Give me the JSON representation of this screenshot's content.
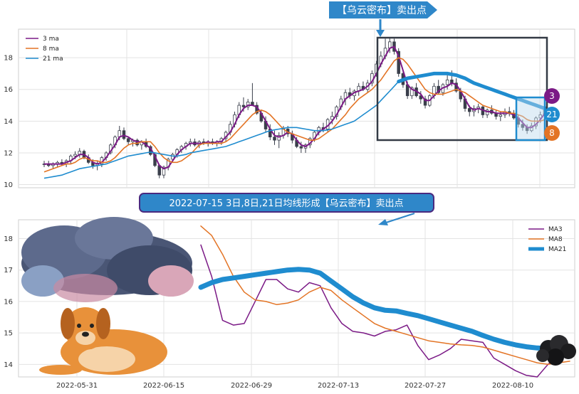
{
  "top_banner": "【乌云密布】卖出点",
  "bottom_banner": "2022-07-15 3日,8日,21日均线形成【乌云密布】卖出点",
  "colors": {
    "ma3": "#7b1a86",
    "ma8": "#e37425",
    "ma21": "#1f8ccf",
    "banner": "#2f87c9",
    "box": "#333a45"
  },
  "chart_data": [
    {
      "type": "candlestick+line",
      "legend": [
        "3 ma",
        "8 ma",
        "21 ma"
      ],
      "legend_position": "top-left",
      "yticks": [
        "10",
        "12",
        "14",
        "16",
        "18"
      ],
      "ylim": [
        9.8,
        19.8
      ],
      "grid": true,
      "end_badges": [
        "3",
        "21",
        "8"
      ],
      "ohlc": [
        [
          11.3,
          11.5,
          11.1,
          11.3
        ],
        [
          11.3,
          11.5,
          11.1,
          11.2
        ],
        [
          11.2,
          11.4,
          11.0,
          11.3
        ],
        [
          11.3,
          11.5,
          11.1,
          11.4
        ],
        [
          11.4,
          11.6,
          11.2,
          11.3
        ],
        [
          11.3,
          11.6,
          11.1,
          11.5
        ],
        [
          11.5,
          11.9,
          11.3,
          11.8
        ],
        [
          11.8,
          12.1,
          11.6,
          11.9
        ],
        [
          11.9,
          12.3,
          11.7,
          12.1
        ],
        [
          12.1,
          12.2,
          11.6,
          11.7
        ],
        [
          11.7,
          11.9,
          11.3,
          11.4
        ],
        [
          11.4,
          11.6,
          11.0,
          11.2
        ],
        [
          11.2,
          11.5,
          10.9,
          11.3
        ],
        [
          11.3,
          11.8,
          11.1,
          11.7
        ],
        [
          11.7,
          12.1,
          11.5,
          12.0
        ],
        [
          12.0,
          12.6,
          11.9,
          12.5
        ],
        [
          12.5,
          13.1,
          12.3,
          13.0
        ],
        [
          13.0,
          13.7,
          12.8,
          13.4
        ],
        [
          13.4,
          13.6,
          12.8,
          12.9
        ],
        [
          12.9,
          13.0,
          12.5,
          12.7
        ],
        [
          12.7,
          12.9,
          12.4,
          12.8
        ],
        [
          12.8,
          12.9,
          12.4,
          12.5
        ],
        [
          12.5,
          12.8,
          12.2,
          12.7
        ],
        [
          12.7,
          12.9,
          12.3,
          12.4
        ],
        [
          12.4,
          12.5,
          11.8,
          11.9
        ],
        [
          11.9,
          12.0,
          11.1,
          11.2
        ],
        [
          11.2,
          11.3,
          10.4,
          10.6
        ],
        [
          10.6,
          11.2,
          10.4,
          11.1
        ],
        [
          11.1,
          11.7,
          10.9,
          11.6
        ],
        [
          11.6,
          12.0,
          11.4,
          11.9
        ],
        [
          11.9,
          12.3,
          11.7,
          12.2
        ],
        [
          12.2,
          12.5,
          12.0,
          12.4
        ],
        [
          12.4,
          12.7,
          12.2,
          12.6
        ],
        [
          12.6,
          12.9,
          12.4,
          12.7
        ],
        [
          12.7,
          12.9,
          12.4,
          12.5
        ],
        [
          12.5,
          12.8,
          12.3,
          12.7
        ],
        [
          12.7,
          12.9,
          12.5,
          12.6
        ],
        [
          12.6,
          12.8,
          12.4,
          12.7
        ],
        [
          12.7,
          12.9,
          12.5,
          12.6
        ],
        [
          12.6,
          12.8,
          12.4,
          12.7
        ],
        [
          12.7,
          13.0,
          12.5,
          12.9
        ],
        [
          12.9,
          13.4,
          12.7,
          13.3
        ],
        [
          13.3,
          14.0,
          13.1,
          13.8
        ],
        [
          13.8,
          14.6,
          13.6,
          14.4
        ],
        [
          14.4,
          15.2,
          14.2,
          15.0
        ],
        [
          15.0,
          15.5,
          14.6,
          14.9
        ],
        [
          14.9,
          15.4,
          14.7,
          15.2
        ],
        [
          15.2,
          16.4,
          15.0,
          15.0
        ],
        [
          15.0,
          15.2,
          14.4,
          14.5
        ],
        [
          14.5,
          14.7,
          13.9,
          14.0
        ],
        [
          14.0,
          14.3,
          13.3,
          13.5
        ],
        [
          13.5,
          13.8,
          12.8,
          13.0
        ],
        [
          13.0,
          13.4,
          12.5,
          12.8
        ],
        [
          12.8,
          13.3,
          12.3,
          13.1
        ],
        [
          13.1,
          13.7,
          12.9,
          13.5
        ],
        [
          13.5,
          13.7,
          13.0,
          13.2
        ],
        [
          13.2,
          13.4,
          12.6,
          12.8
        ],
        [
          12.8,
          13.0,
          12.3,
          12.4
        ],
        [
          12.4,
          12.7,
          12.0,
          12.3
        ],
        [
          12.3,
          12.6,
          12.0,
          12.5
        ],
        [
          12.5,
          13.0,
          12.3,
          12.9
        ],
        [
          12.9,
          13.4,
          12.7,
          13.3
        ],
        [
          13.3,
          13.7,
          13.1,
          13.6
        ],
        [
          13.6,
          13.9,
          13.3,
          13.5
        ],
        [
          13.5,
          14.2,
          13.3,
          14.1
        ],
        [
          14.1,
          14.6,
          13.8,
          14.3
        ],
        [
          14.3,
          15.0,
          14.1,
          14.9
        ],
        [
          14.9,
          15.6,
          14.7,
          15.4
        ],
        [
          15.4,
          16.0,
          15.0,
          15.8
        ],
        [
          15.8,
          16.1,
          15.4,
          15.6
        ],
        [
          15.6,
          16.0,
          15.3,
          15.9
        ],
        [
          15.9,
          16.4,
          15.6,
          16.2
        ],
        [
          16.2,
          16.5,
          15.9,
          16.0
        ],
        [
          16.0,
          16.6,
          15.8,
          16.4
        ],
        [
          16.4,
          17.2,
          16.2,
          17.0
        ],
        [
          17.0,
          17.8,
          16.8,
          17.6
        ],
        [
          17.6,
          18.4,
          17.4,
          18.1
        ],
        [
          18.1,
          19.2,
          17.9,
          18.6
        ],
        [
          18.6,
          19.3,
          18.3,
          19.0
        ],
        [
          19.0,
          19.2,
          18.2,
          18.4
        ],
        [
          18.4,
          18.6,
          16.8,
          17.0
        ],
        [
          17.0,
          17.2,
          16.1,
          16.3
        ],
        [
          16.3,
          16.5,
          15.4,
          15.6
        ],
        [
          15.6,
          16.2,
          15.4,
          16.1
        ],
        [
          16.1,
          16.4,
          15.5,
          15.6
        ],
        [
          15.6,
          15.9,
          15.1,
          15.4
        ],
        [
          15.4,
          15.6,
          14.8,
          15.0
        ],
        [
          15.0,
          15.7,
          14.9,
          15.6
        ],
        [
          15.6,
          16.4,
          15.4,
          16.2
        ],
        [
          16.2,
          16.6,
          15.7,
          15.8
        ],
        [
          15.8,
          16.4,
          15.6,
          16.3
        ],
        [
          16.3,
          16.9,
          16.0,
          16.6
        ],
        [
          16.6,
          17.2,
          16.2,
          16.4
        ],
        [
          16.4,
          16.7,
          15.8,
          15.9
        ],
        [
          15.9,
          16.1,
          15.2,
          15.4
        ],
        [
          15.4,
          15.6,
          14.6,
          14.8
        ],
        [
          14.8,
          15.0,
          14.3,
          14.6
        ],
        [
          14.6,
          15.0,
          14.3,
          14.8
        ],
        [
          14.8,
          15.1,
          14.5,
          14.9
        ],
        [
          14.9,
          15.0,
          14.2,
          14.4
        ],
        [
          14.4,
          14.8,
          14.2,
          14.7
        ],
        [
          14.7,
          15.0,
          14.4,
          14.5
        ],
        [
          14.5,
          14.7,
          14.1,
          14.3
        ],
        [
          14.3,
          14.6,
          14.0,
          14.4
        ],
        [
          14.4,
          14.8,
          14.2,
          14.6
        ],
        [
          14.6,
          14.9,
          14.3,
          14.5
        ],
        [
          14.5,
          14.7,
          14.1,
          14.2
        ],
        [
          14.2,
          14.4,
          13.6,
          13.8
        ],
        [
          13.8,
          14.1,
          13.4,
          13.6
        ],
        [
          13.6,
          13.8,
          13.2,
          13.4
        ],
        [
          13.4,
          13.9,
          13.3,
          13.7
        ],
        [
          13.7,
          14.3,
          13.5,
          14.2
        ],
        [
          14.2,
          14.6,
          13.9,
          14.4
        ],
        [
          14.4,
          15.0,
          14.2,
          14.9
        ]
      ],
      "series": [
        {
          "name": "3 ma",
          "values": [
            11.3,
            11.3,
            11.3,
            11.3,
            11.3,
            11.4,
            11.5,
            11.7,
            11.9,
            11.9,
            11.7,
            11.4,
            11.3,
            11.4,
            11.7,
            12.1,
            12.5,
            13.0,
            13.1,
            13.0,
            12.8,
            12.7,
            12.7,
            12.5,
            12.3,
            11.8,
            11.2,
            11.0,
            11.1,
            11.5,
            11.9,
            12.2,
            12.4,
            12.6,
            12.6,
            12.6,
            12.6,
            12.7,
            12.6,
            12.7,
            12.7,
            13.0,
            13.3,
            13.8,
            14.4,
            14.8,
            15.0,
            15.0,
            14.9,
            14.5,
            14.0,
            13.5,
            13.1,
            13.0,
            13.1,
            13.3,
            13.2,
            12.8,
            12.5,
            12.4,
            12.6,
            12.9,
            13.3,
            13.5,
            13.7,
            14.0,
            14.4,
            14.9,
            15.4,
            15.6,
            15.8,
            15.9,
            16.0,
            16.2,
            16.5,
            17.0,
            17.6,
            18.1,
            18.6,
            18.7,
            18.1,
            17.2,
            16.3,
            16.0,
            15.9,
            15.7,
            15.3,
            15.3,
            15.6,
            15.9,
            16.1,
            16.2,
            16.4,
            16.3,
            15.9,
            15.4,
            14.9,
            14.7,
            14.8,
            14.7,
            14.6,
            14.6,
            14.5,
            14.5,
            14.5,
            14.5,
            14.4,
            14.2,
            13.9,
            13.6,
            13.6,
            13.8,
            14.1,
            14.5
          ]
        },
        {
          "name": "8 ma",
          "values": [
            10.8,
            10.9,
            11.0,
            11.1,
            11.2,
            11.3,
            11.3,
            11.4,
            11.6,
            11.7,
            11.6,
            11.5,
            11.5,
            11.4,
            11.4,
            11.5,
            11.7,
            12.0,
            12.3,
            12.5,
            12.6,
            12.6,
            12.7,
            12.7,
            12.7,
            12.4,
            12.0,
            11.7,
            11.5,
            11.4,
            11.4,
            11.5,
            11.7,
            11.9,
            12.2,
            12.5,
            12.6,
            12.6,
            12.6,
            12.6,
            12.6,
            12.7,
            12.9,
            13.2,
            13.5,
            13.8,
            14.1,
            14.4,
            14.6,
            14.7,
            14.6,
            14.4,
            14.1,
            13.8,
            13.5,
            13.3,
            13.2,
            13.1,
            13.0,
            12.9,
            12.8,
            12.8,
            12.9,
            13.1,
            13.3,
            13.5,
            13.8,
            14.1,
            14.4,
            14.8,
            15.1,
            15.4,
            15.6,
            15.8,
            16.0,
            16.3,
            16.6,
            17.0,
            17.4,
            17.8,
            18.0,
            17.9,
            17.6,
            17.2,
            16.8,
            16.4,
            16.0,
            15.8,
            15.7,
            15.7,
            15.7,
            15.8,
            15.9,
            16.0,
            15.9,
            15.8,
            15.6,
            15.4,
            15.2,
            15.0,
            14.9,
            14.8,
            14.7,
            14.6,
            14.6,
            14.5,
            14.5,
            14.4,
            14.3,
            14.1,
            14.0,
            14.0,
            14.0,
            14.1
          ]
        },
        {
          "name": "21 ma",
          "values": [
            10.4,
            10.45,
            10.5,
            10.55,
            10.6,
            10.7,
            10.8,
            10.9,
            11.0,
            11.05,
            11.1,
            11.15,
            11.2,
            11.25,
            11.3,
            11.4,
            11.5,
            11.6,
            11.7,
            11.8,
            11.85,
            11.9,
            11.95,
            12.0,
            12.05,
            12.0,
            11.95,
            11.9,
            11.85,
            11.8,
            11.8,
            11.85,
            11.9,
            12.0,
            12.05,
            12.1,
            12.15,
            12.2,
            12.25,
            12.3,
            12.35,
            12.4,
            12.5,
            12.6,
            12.7,
            12.8,
            12.9,
            13.0,
            13.1,
            13.2,
            13.3,
            13.4,
            13.45,
            13.5,
            13.55,
            13.6,
            13.6,
            13.6,
            13.55,
            13.5,
            13.45,
            13.4,
            13.4,
            13.4,
            13.45,
            13.5,
            13.6,
            13.7,
            13.8,
            13.9,
            14.0,
            14.2,
            14.4,
            14.6,
            14.8,
            15.0,
            15.3,
            15.6,
            15.9,
            16.2,
            16.5,
            16.6,
            16.7,
            16.75,
            16.8,
            16.85,
            16.9,
            16.95,
            17.0,
            17.0,
            17.0,
            17.0,
            16.95,
            16.9,
            16.8,
            16.7,
            16.55,
            16.4,
            16.3,
            16.2,
            16.1,
            16.0,
            15.9,
            15.8,
            15.7,
            15.6,
            15.5,
            15.4,
            15.3,
            15.2,
            15.1,
            15.0,
            14.9,
            14.8
          ]
        }
      ]
    },
    {
      "type": "line",
      "legend": [
        "MA3",
        "MA8",
        "MA21"
      ],
      "legend_position": "top-right",
      "xticks": [
        "2022-05-31",
        "2022-06-15",
        "2022-06-29",
        "2022-07-13",
        "2022-07-27",
        "2022-08-10"
      ],
      "yticks": [
        "14",
        "15",
        "16",
        "17",
        "18"
      ],
      "ylim": [
        13.6,
        18.6
      ],
      "grid": true,
      "series": [
        {
          "name": "MA3",
          "values": [
            17.8,
            16.8,
            15.4,
            15.25,
            15.3,
            16.0,
            16.7,
            16.7,
            16.4,
            16.3,
            16.6,
            16.5,
            15.8,
            15.3,
            15.05,
            15.0,
            14.9,
            15.05,
            15.1,
            15.25,
            14.6,
            14.15,
            14.3,
            14.5,
            14.8,
            14.75,
            14.7,
            14.2,
            14.0,
            13.8,
            13.65,
            13.6,
            14.0,
            14.3,
            14.45
          ]
        },
        {
          "name": "MA8",
          "values": [
            18.4,
            18.1,
            17.5,
            16.8,
            16.3,
            16.05,
            16.0,
            15.9,
            15.95,
            16.05,
            16.3,
            16.45,
            16.35,
            16.05,
            15.8,
            15.55,
            15.3,
            15.15,
            15.05,
            14.95,
            14.85,
            14.75,
            14.7,
            14.65,
            14.62,
            14.6,
            14.55,
            14.45,
            14.35,
            14.25,
            14.15,
            14.05,
            14.0,
            14.05,
            14.1
          ]
        },
        {
          "name": "MA21",
          "values": [
            16.45,
            16.6,
            16.7,
            16.75,
            16.8,
            16.85,
            16.9,
            16.95,
            17.0,
            17.02,
            17.0,
            16.9,
            16.65,
            16.4,
            16.15,
            15.95,
            15.8,
            15.72,
            15.7,
            15.62,
            15.55,
            15.45,
            15.35,
            15.25,
            15.15,
            15.05,
            14.92,
            14.8,
            14.7,
            14.62,
            14.56,
            14.52,
            14.5,
            14.48,
            14.46
          ]
        }
      ]
    }
  ]
}
